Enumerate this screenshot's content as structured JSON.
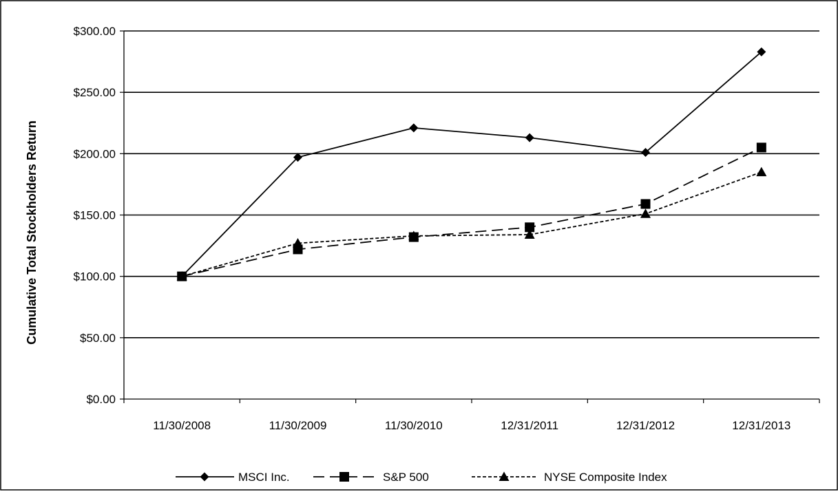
{
  "chart_data": {
    "type": "line",
    "title": "",
    "xlabel": "",
    "ylabel": "Cumulative Total Stockholders Return",
    "categories": [
      "11/30/2008",
      "11/30/2009",
      "11/30/2010",
      "12/31/2011",
      "12/31/2012",
      "12/31/2013"
    ],
    "ylim": [
      0,
      300
    ],
    "yticks": [
      0,
      50,
      100,
      150,
      200,
      250,
      300
    ],
    "ytick_labels": [
      "$0.00",
      "$50.00",
      "$100.00",
      "$150.00",
      "$200.00",
      "$250.00",
      "$300.00"
    ],
    "grid": "horizontal",
    "legend_position": "bottom",
    "series": [
      {
        "name": "MSCI Inc.",
        "values": [
          100,
          197,
          221,
          213,
          201,
          283
        ],
        "marker": "diamond",
        "line_style": "solid",
        "color": "#000000"
      },
      {
        "name": "S&P 500",
        "values": [
          100,
          122,
          132,
          140,
          159,
          205
        ],
        "marker": "square",
        "line_style": "long-dash",
        "color": "#000000"
      },
      {
        "name": "NYSE Composite Index",
        "values": [
          100,
          127,
          133,
          134,
          151,
          185
        ],
        "marker": "triangle",
        "line_style": "short-dash",
        "color": "#000000"
      }
    ]
  }
}
